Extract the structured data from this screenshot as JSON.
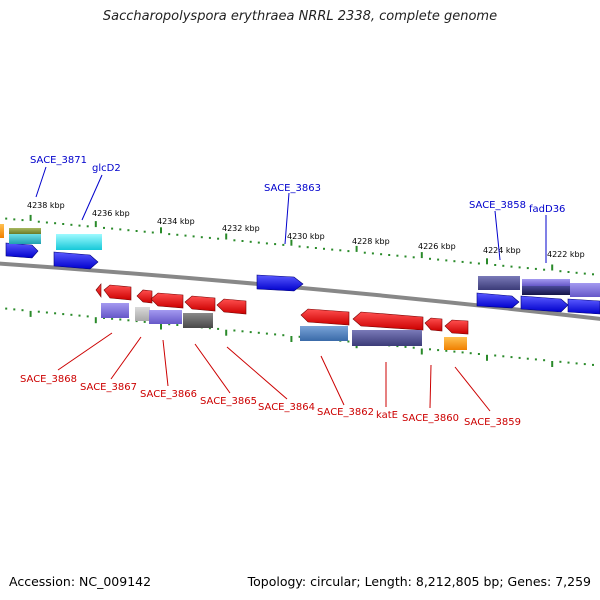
{
  "title": "Saccharopolyspora erythraea NRRL 2338, complete genome",
  "footer": {
    "accession": "Accession: NC_009142",
    "summary": "Topology: circular; Length: 8,212,805 bp; Genes: 7,259"
  },
  "colors": {
    "forward_gene": "#1a1ae6",
    "reverse_gene": "#e61a1a",
    "top_label": "#0000cc",
    "bottom_label": "#cc0000",
    "tick": "#2a8a2a",
    "backbone": "#888888"
  },
  "kbp_labels": [
    "4238 kbp",
    "4236 kbp",
    "4234 kbp",
    "4232 kbp",
    "4230 kbp",
    "4228 kbp",
    "4226 kbp",
    "4224 kbp",
    "4222 kbp"
  ],
  "top_genes": [
    "SACE_3871",
    "glcD2",
    "SACE_3863",
    "SACE_3858",
    "fadD36"
  ],
  "bottom_genes": [
    "SACE_3868",
    "SACE_3867",
    "SACE_3866",
    "SACE_3865",
    "SACE_3864",
    "SACE_3862",
    "katE",
    "SACE_3860",
    "SACE_3859"
  ]
}
